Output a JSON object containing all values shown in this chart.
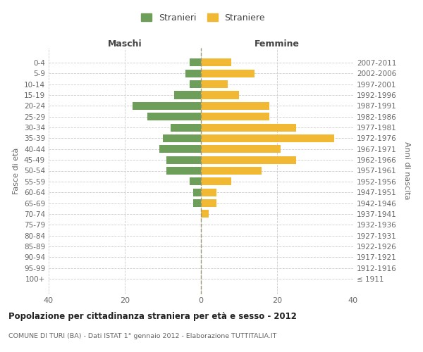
{
  "age_groups": [
    "100+",
    "95-99",
    "90-94",
    "85-89",
    "80-84",
    "75-79",
    "70-74",
    "65-69",
    "60-64",
    "55-59",
    "50-54",
    "45-49",
    "40-44",
    "35-39",
    "30-34",
    "25-29",
    "20-24",
    "15-19",
    "10-14",
    "5-9",
    "0-4"
  ],
  "birth_years": [
    "≤ 1911",
    "1912-1916",
    "1917-1921",
    "1922-1926",
    "1927-1931",
    "1932-1936",
    "1937-1941",
    "1942-1946",
    "1947-1951",
    "1952-1956",
    "1957-1961",
    "1962-1966",
    "1967-1971",
    "1972-1976",
    "1977-1981",
    "1982-1986",
    "1987-1991",
    "1992-1996",
    "1997-2001",
    "2002-2006",
    "2007-2011"
  ],
  "maschi": [
    0,
    0,
    0,
    0,
    0,
    0,
    0,
    2,
    2,
    3,
    9,
    9,
    11,
    10,
    8,
    14,
    18,
    7,
    3,
    4,
    3
  ],
  "femmine": [
    0,
    0,
    0,
    0,
    0,
    0,
    2,
    4,
    4,
    8,
    16,
    25,
    21,
    35,
    25,
    18,
    18,
    10,
    7,
    14,
    8
  ],
  "male_color": "#6d9e5a",
  "female_color": "#f0b833",
  "title": "Popolazione per cittadinanza straniera per età e sesso - 2012",
  "subtitle": "COMUNE DI TURI (BA) - Dati ISTAT 1° gennaio 2012 - Elaborazione TUTTITALIA.IT",
  "label_maschi": "Maschi",
  "label_femmine": "Femmine",
  "ylabel_left": "Fasce di età",
  "ylabel_right": "Anni di nascita",
  "legend_male": "Stranieri",
  "legend_female": "Straniere",
  "xlim": 40,
  "background_color": "#ffffff",
  "grid_color": "#cccccc",
  "dashed_line_color": "#999977"
}
